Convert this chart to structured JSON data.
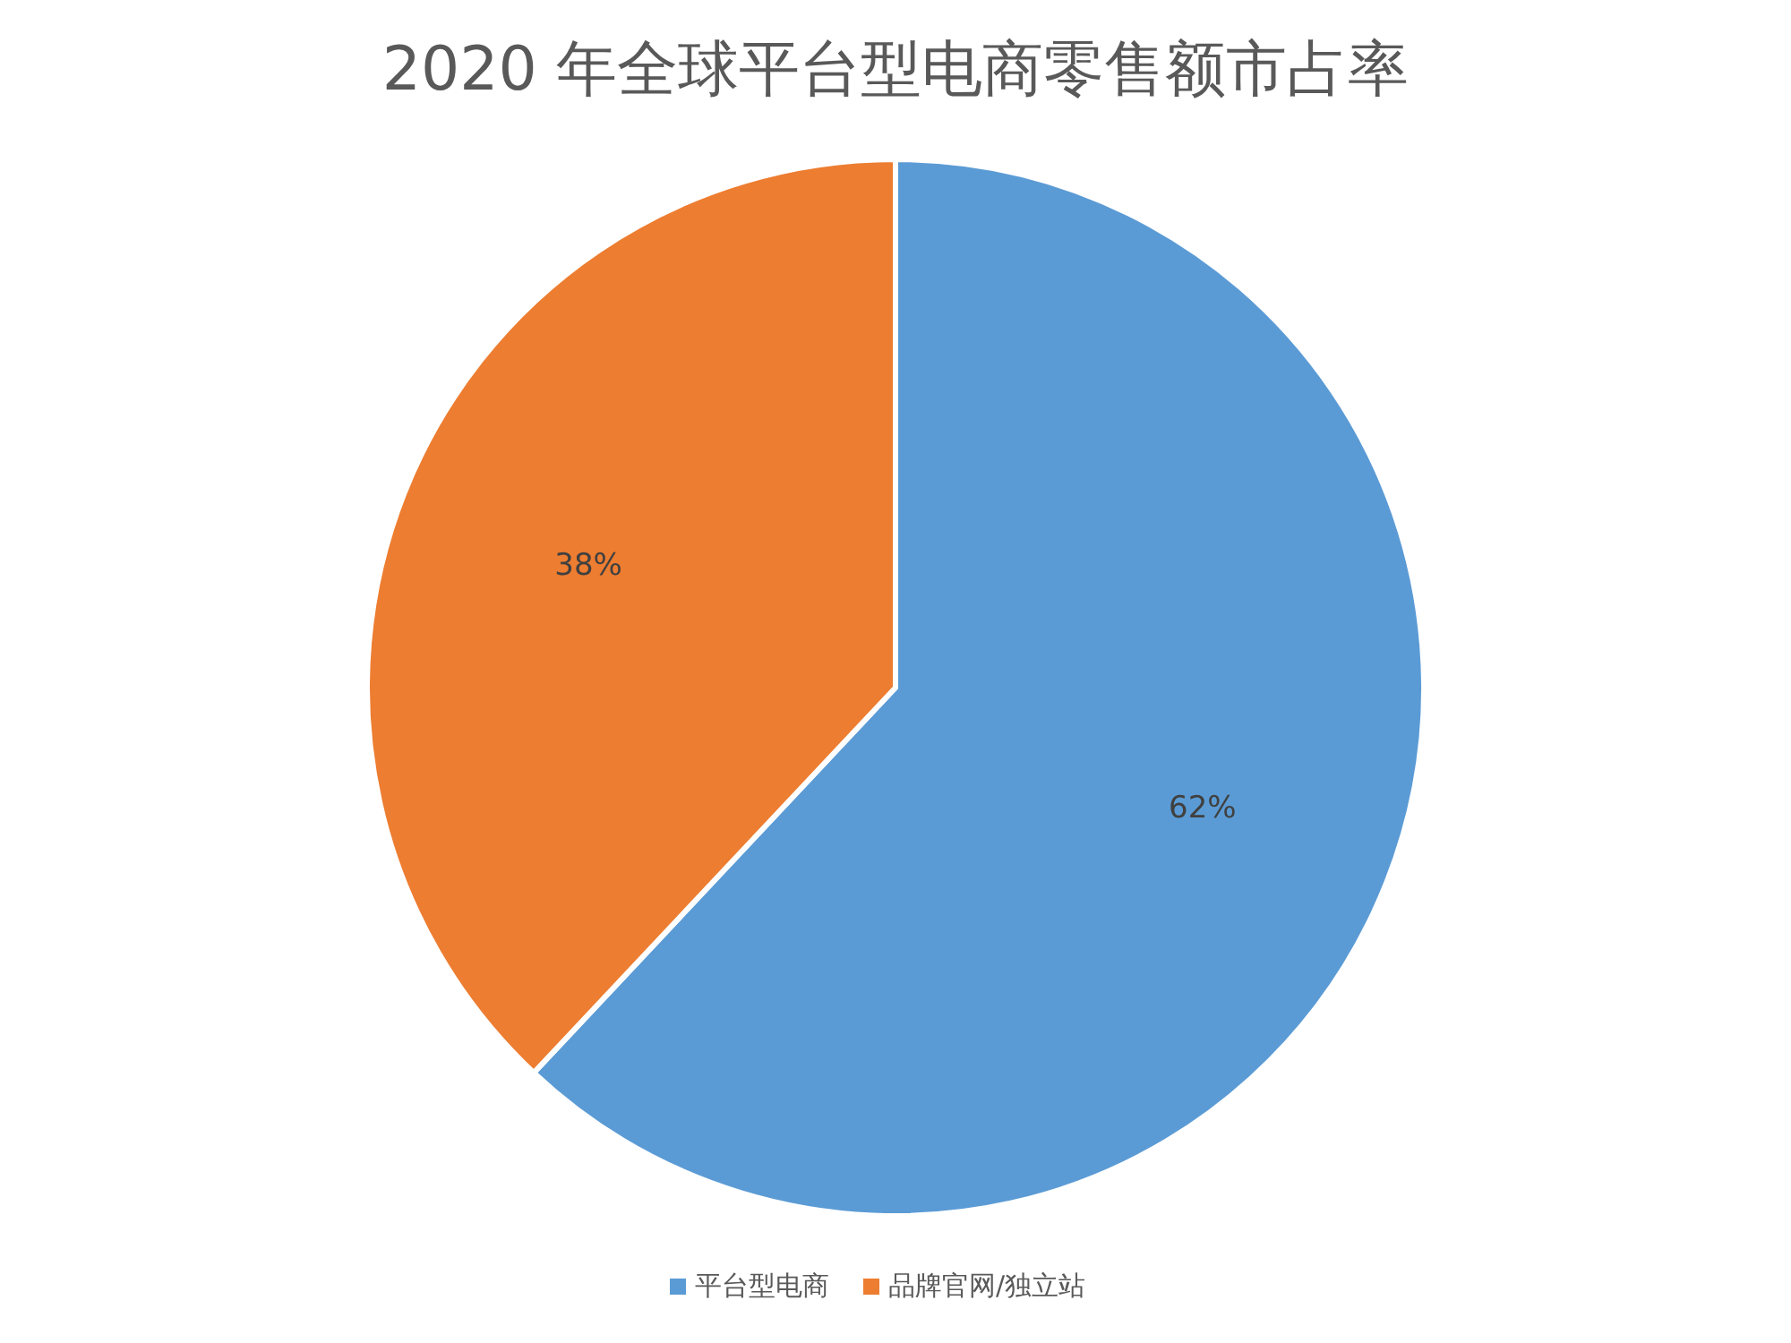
{
  "chart_data": {
    "type": "pie",
    "title": "2020 年全球平台型电商零售额市占率",
    "categories": [
      "平台型电商",
      "品牌官网/独立站"
    ],
    "values": [
      62,
      38
    ],
    "colors": [
      "#5b9bd5",
      "#ed7d31"
    ],
    "value_labels": [
      "62%",
      "38%"
    ],
    "legend": "bottom"
  }
}
